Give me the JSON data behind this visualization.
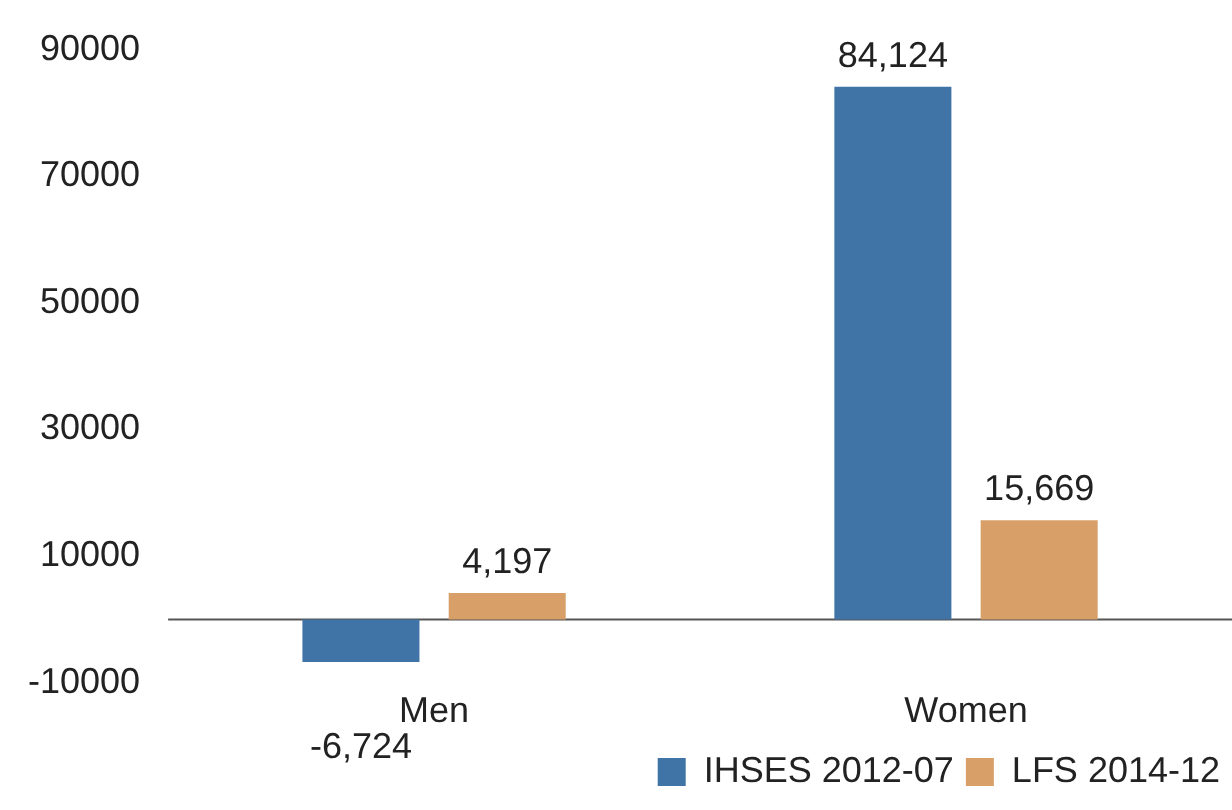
{
  "chart_data": {
    "type": "bar",
    "categories": [
      "Men",
      "Women"
    ],
    "series": [
      {
        "name": "IHSES 2012-07",
        "color": "#4174a6",
        "values": [
          -6724,
          84124
        ],
        "value_labels": [
          "-6,724",
          "84,124"
        ]
      },
      {
        "name": "LFS 2014-12",
        "color": "#d8a068",
        "values": [
          4197,
          15669
        ],
        "value_labels": [
          "4,197",
          "15,669"
        ]
      }
    ],
    "ylim": [
      -10000,
      90000
    ],
    "yticks": [
      -10000,
      10000,
      30000,
      50000,
      70000,
      90000
    ],
    "grid": false,
    "legend": "bottom right"
  }
}
